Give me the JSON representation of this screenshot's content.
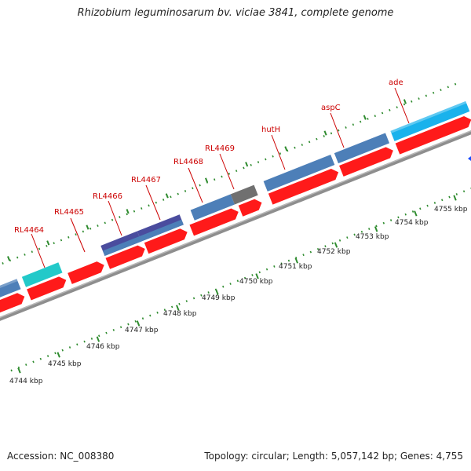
{
  "title": "Rhizobium leguminosarum bv. viciae 3841, complete genome",
  "footer": {
    "accession": "Accession: NC_008380",
    "summary": "Topology: circular; Length: 5,057,142 bp; Genes: 4,755"
  },
  "colors": {
    "backbone": "#8e8e8e",
    "cds": "#ff1a1a",
    "tick": "#2e8b2e",
    "label": "#cc0000",
    "gene_steel": "#4d7fb8",
    "gene_cyan": "#22c9c9",
    "gene_sky": "#1ab2ec",
    "gene_purple": "#4a4c9e",
    "gene_gray": "#707070"
  },
  "scale_labels": [
    "4744 kbp",
    "4745 kbp",
    "4746 kbp",
    "4747 kbp",
    "4748 kbp",
    "4749 kbp",
    "4750 kbp",
    "4751 kbp",
    "4752 kbp",
    "4753 kbp",
    "4754 kbp",
    "4755 kbp"
  ],
  "gene_labels": [
    "RL4464",
    "RL4465",
    "RL4466",
    "RL4467",
    "RL4468",
    "RL4469",
    "hutH",
    "aspC",
    "ade"
  ]
}
